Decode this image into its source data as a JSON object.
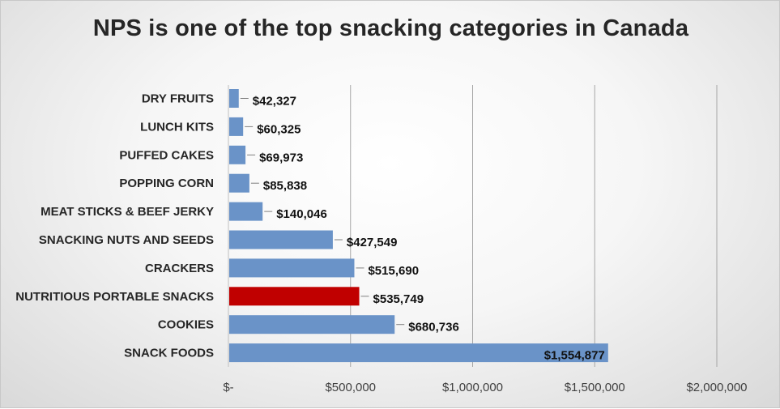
{
  "chart_data": {
    "type": "bar",
    "orientation": "horizontal",
    "title": "NPS is one of the top snacking categories in Canada",
    "categories": [
      "DRY FRUITS",
      "LUNCH KITS",
      "PUFFED CAKES",
      "POPPING CORN",
      "MEAT STICKS & BEEF JERKY",
      "SNACKING NUTS AND SEEDS",
      "CRACKERS",
      "NUTRITIOUS PORTABLE SNACKS",
      "COOKIES",
      "SNACK FOODS"
    ],
    "values": [
      42327,
      60325,
      69973,
      85838,
      140046,
      427549,
      515690,
      535749,
      680736,
      1554877
    ],
    "value_labels": [
      "$42,327",
      "$60,325",
      "$69,973",
      "$85,838",
      "$140,046",
      "$427,549",
      "$515,690",
      "$535,749",
      "$680,736",
      "$1,554,877"
    ],
    "highlight_index": 7,
    "colors": {
      "bar": "#6a93c8",
      "highlight_bar": "#c00000",
      "highlight_text": "#c00000",
      "gridline": "#a6a6a6",
      "leader": "#7f7f7f"
    },
    "xlim": [
      0,
      2000000
    ],
    "x_ticks": [
      0,
      500000,
      1000000,
      1500000,
      2000000
    ],
    "x_tick_labels": [
      "$-",
      "$500,000",
      "$1,000,000",
      "$1,500,000",
      "$2,000,000"
    ],
    "grid": "vertical major",
    "legend": "none"
  }
}
